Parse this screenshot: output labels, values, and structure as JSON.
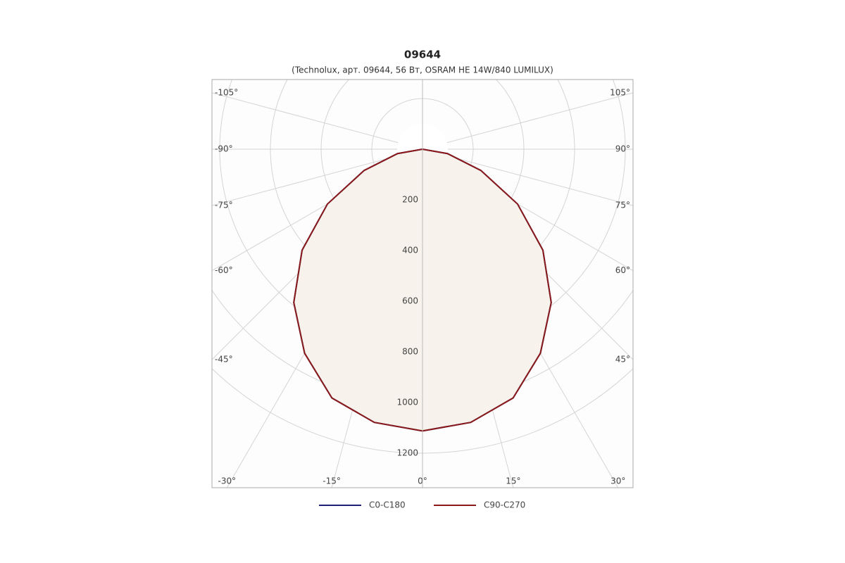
{
  "chart_data": {
    "type": "polar",
    "title": "09644",
    "subtitle": "(Technolux, арт. 09644, 56 Вт, OSRAM HE 14W/840 LUMILUX)",
    "x": [
      -90,
      -80,
      -70,
      -60,
      -50,
      -40,
      -30,
      -20,
      -10,
      0,
      10,
      20,
      30,
      40,
      50,
      60,
      70,
      80,
      90
    ],
    "series": [
      {
        "name": "C0-C180",
        "color": "#1a1f7a",
        "values": [
          0,
          100,
          245,
          433,
          620,
          790,
          930,
          1045,
          1095,
          1112,
          1095,
          1045,
          930,
          790,
          620,
          433,
          245,
          100,
          0
        ]
      },
      {
        "name": "C90-C270",
        "color": "#8b1a1a",
        "values": [
          0,
          100,
          245,
          433,
          620,
          790,
          930,
          1045,
          1095,
          1112,
          1095,
          1045,
          930,
          790,
          620,
          433,
          245,
          100,
          0
        ]
      }
    ],
    "rlim": [
      0,
      1400
    ],
    "rticks": [
      200,
      400,
      600,
      800,
      1000,
      1200
    ],
    "thetaticks": [
      {
        "value": -105,
        "label": "-105°"
      },
      {
        "value": -90,
        "label": "-90°"
      },
      {
        "value": -75,
        "label": "-75°"
      },
      {
        "value": -60,
        "label": "-60°"
      },
      {
        "value": -45,
        "label": "-45°"
      },
      {
        "value": -30,
        "label": "-30°"
      },
      {
        "value": -15,
        "label": "-15°"
      },
      {
        "value": 0,
        "label": "0°"
      },
      {
        "value": 15,
        "label": "15°"
      },
      {
        "value": 30,
        "label": "30°"
      },
      {
        "value": 45,
        "label": "45°"
      },
      {
        "value": 60,
        "label": "60°"
      },
      {
        "value": 75,
        "label": "75°"
      },
      {
        "value": 90,
        "label": "90°"
      },
      {
        "value": 105,
        "label": "105°"
      }
    ],
    "fill": "#f7f3ec",
    "grid": true
  }
}
